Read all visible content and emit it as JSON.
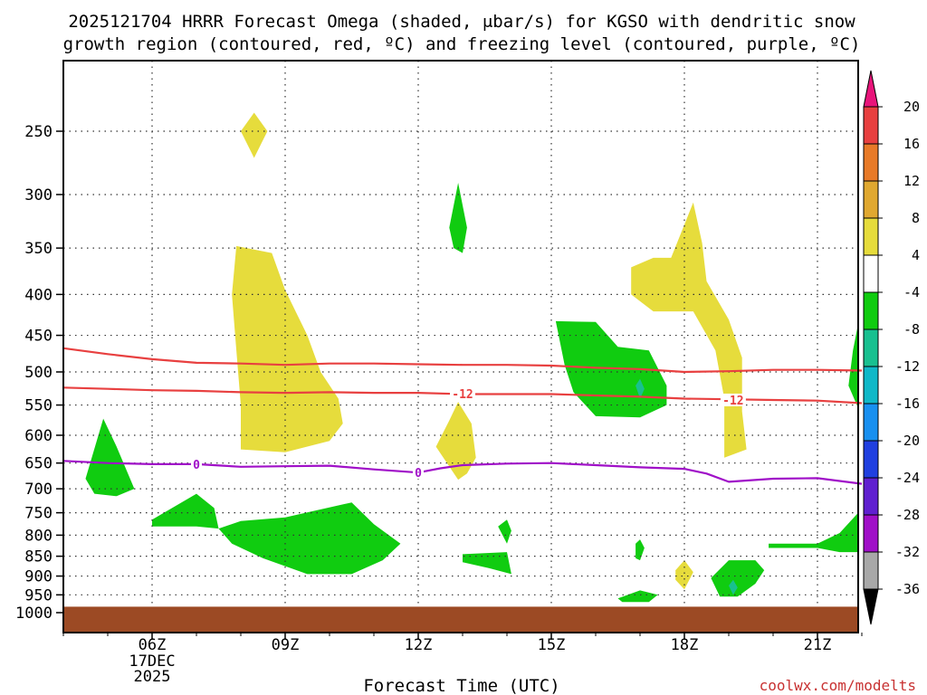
{
  "chart_data": {
    "type": "time-height",
    "title_lines": [
      "2025121704 HRRR Forecast Omega (shaded, μbar/s) for KGSO with dendritic snow",
      "growth region (contoured, red, ºC) and freezing level (contoured, purple, ºC)"
    ],
    "xlabel": "Forecast Time (UTC)",
    "credit": "coolwx.com/modelts",
    "x_ticks": [
      {
        "hour": 6,
        "label": "06Z",
        "sub": [
          "17DEC",
          "2025"
        ]
      },
      {
        "hour": 9,
        "label": "09Z",
        "sub": []
      },
      {
        "hour": 12,
        "label": "12Z",
        "sub": []
      },
      {
        "hour": 15,
        "label": "15Z",
        "sub": []
      },
      {
        "hour": 18,
        "label": "18Z",
        "sub": []
      },
      {
        "hour": 21,
        "label": "21Z",
        "sub": []
      }
    ],
    "x_range_hours": [
      4.0,
      22.0
    ],
    "y_ticks": [
      250,
      300,
      350,
      400,
      450,
      500,
      550,
      600,
      650,
      700,
      750,
      800,
      850,
      900,
      950,
      1000
    ],
    "y_range_hpa": [
      200,
      1020
    ],
    "ground_level_hpa": 983,
    "colorbar": {
      "labels": [
        "20",
        "16",
        "12",
        "8",
        "4",
        "-4",
        "-8",
        "-12",
        "-16",
        "-20",
        "-24",
        "-28",
        "-32",
        "-36"
      ],
      "colors": [
        "#e8147a",
        "#e84040",
        "#e87a28",
        "#e0a830",
        "#e6dc3c",
        "#ffffff",
        "#10cc10",
        "#18c090",
        "#10b8c8",
        "#1890f0",
        "#2040e0",
        "#6020d0",
        "#a010c8",
        "#a8a8a8",
        "#000000"
      ]
    },
    "omega_regions": [
      {
        "value_range": "4 to 8",
        "color": "#e6dc3c",
        "points": [
          [
            8.0,
            250
          ],
          [
            8.3,
            237
          ],
          [
            8.6,
            250
          ],
          [
            8.3,
            270
          ]
        ]
      },
      {
        "value_range": "4 to 8",
        "color": "#e6dc3c",
        "points": [
          [
            7.8,
            400
          ],
          [
            7.9,
            348
          ],
          [
            8.7,
            355
          ],
          [
            9.0,
            395
          ],
          [
            9.5,
            450
          ],
          [
            9.8,
            500
          ],
          [
            10.2,
            540
          ],
          [
            10.3,
            580
          ],
          [
            10.0,
            610
          ],
          [
            9.0,
            630
          ],
          [
            8.0,
            625
          ],
          [
            8.0,
            550
          ],
          [
            7.9,
            470
          ]
        ]
      },
      {
        "value_range": "-4 to -8",
        "color": "#10cc10",
        "points": [
          [
            12.7,
            330
          ],
          [
            12.9,
            290
          ],
          [
            13.1,
            330
          ],
          [
            13.0,
            355
          ],
          [
            12.8,
            350
          ]
        ]
      },
      {
        "value_range": "4 to 8",
        "color": "#e6dc3c",
        "points": [
          [
            17.7,
            360
          ],
          [
            18.2,
            307
          ],
          [
            18.4,
            345
          ],
          [
            18.5,
            385
          ],
          [
            19.0,
            430
          ],
          [
            19.3,
            480
          ],
          [
            19.3,
            560
          ],
          [
            19.4,
            625
          ],
          [
            18.9,
            640
          ],
          [
            18.9,
            540
          ],
          [
            18.7,
            470
          ],
          [
            18.2,
            420
          ],
          [
            17.8,
            420
          ],
          [
            17.3,
            420
          ],
          [
            16.8,
            400
          ],
          [
            16.8,
            370
          ],
          [
            17.3,
            360
          ]
        ]
      },
      {
        "value_range": "-4 to -8",
        "color": "#10cc10",
        "points": [
          [
            15.1,
            432
          ],
          [
            16.0,
            433
          ],
          [
            16.5,
            465
          ],
          [
            17.2,
            470
          ],
          [
            17.6,
            520
          ],
          [
            17.6,
            550
          ],
          [
            17.0,
            570
          ],
          [
            16.0,
            568
          ],
          [
            15.5,
            530
          ],
          [
            15.3,
            490
          ]
        ]
      },
      {
        "value_range": "-8 to -12",
        "color": "#18c090",
        "points": [
          [
            16.9,
            520
          ],
          [
            17.0,
            510
          ],
          [
            17.1,
            525
          ],
          [
            17.0,
            540
          ]
        ]
      },
      {
        "value_range": "-4 to -8",
        "color": "#10cc10",
        "points": [
          [
            22.0,
            435
          ],
          [
            22.0,
            555
          ],
          [
            21.7,
            520
          ],
          [
            21.8,
            470
          ]
        ]
      },
      {
        "value_range": "-4 to -8",
        "color": "#10cc10",
        "points": [
          [
            4.5,
            680
          ],
          [
            4.9,
            572
          ],
          [
            5.2,
            620
          ],
          [
            5.6,
            700
          ],
          [
            5.2,
            715
          ],
          [
            4.7,
            710
          ]
        ]
      },
      {
        "value_range": "4 to 8",
        "color": "#e6dc3c",
        "points": [
          [
            12.4,
            620
          ],
          [
            12.7,
            575
          ],
          [
            12.9,
            545
          ],
          [
            13.2,
            580
          ],
          [
            13.3,
            640
          ],
          [
            13.1,
            670
          ],
          [
            12.9,
            682
          ]
        ]
      },
      {
        "value_range": "-4 to -8",
        "color": "#10cc10",
        "points": [
          [
            6.0,
            765
          ],
          [
            7.0,
            710
          ],
          [
            7.4,
            740
          ],
          [
            7.5,
            785
          ],
          [
            7.0,
            780
          ],
          [
            6.0,
            780
          ]
        ]
      },
      {
        "value_range": "-4 to -8",
        "color": "#10cc10",
        "points": [
          [
            7.5,
            785
          ],
          [
            8.0,
            768
          ],
          [
            9.0,
            760
          ],
          [
            10.5,
            728
          ],
          [
            11.0,
            775
          ],
          [
            11.6,
            820
          ],
          [
            11.2,
            860
          ],
          [
            10.5,
            895
          ],
          [
            9.5,
            895
          ],
          [
            8.5,
            855
          ],
          [
            7.8,
            820
          ]
        ]
      },
      {
        "value_range": "-4 to -8",
        "color": "#10cc10",
        "points": [
          [
            13.8,
            780
          ],
          [
            14.0,
            765
          ],
          [
            14.1,
            790
          ],
          [
            14.0,
            820
          ]
        ]
      },
      {
        "value_range": "-4 to -8",
        "color": "#10cc10",
        "points": [
          [
            13.0,
            845
          ],
          [
            14.0,
            840
          ],
          [
            14.1,
            895
          ],
          [
            13.6,
            880
          ],
          [
            13.0,
            865
          ]
        ]
      },
      {
        "value_range": "-4 to -8",
        "color": "#10cc10",
        "points": [
          [
            16.9,
            820
          ],
          [
            17.0,
            810
          ],
          [
            17.1,
            830
          ],
          [
            17.0,
            860
          ],
          [
            16.9,
            855
          ]
        ]
      },
      {
        "value_range": "4 to 8",
        "color": "#e6dc3c",
        "points": [
          [
            17.8,
            885
          ],
          [
            18.0,
            860
          ],
          [
            18.2,
            890
          ],
          [
            18.0,
            935
          ],
          [
            17.8,
            910
          ]
        ]
      },
      {
        "value_range": "-4 to -8",
        "color": "#10cc10",
        "points": [
          [
            16.5,
            960
          ],
          [
            17.0,
            938
          ],
          [
            17.4,
            950
          ],
          [
            17.2,
            970
          ],
          [
            16.6,
            970
          ]
        ]
      },
      {
        "value_range": "-4 to -8",
        "color": "#10cc10",
        "points": [
          [
            18.6,
            905
          ],
          [
            19.0,
            860
          ],
          [
            19.6,
            860
          ],
          [
            19.8,
            885
          ],
          [
            19.6,
            920
          ],
          [
            19.2,
            955
          ],
          [
            18.8,
            955
          ]
        ]
      },
      {
        "value_range": "-8 to -12",
        "color": "#18c090",
        "points": [
          [
            19.0,
            925
          ],
          [
            19.1,
            910
          ],
          [
            19.2,
            930
          ],
          [
            19.1,
            950
          ]
        ]
      },
      {
        "value_range": "-4 to -8",
        "color": "#10cc10",
        "points": [
          [
            19.9,
            820
          ],
          [
            21.0,
            820
          ],
          [
            21.5,
            795
          ],
          [
            22.0,
            750
          ],
          [
            22.0,
            840
          ],
          [
            21.5,
            840
          ],
          [
            21.0,
            830
          ],
          [
            19.9,
            830
          ]
        ]
      }
    ],
    "dgz_contours": [
      {
        "value": -12,
        "color": "#e84040",
        "points": [
          [
            4.0,
            467
          ],
          [
            5.0,
            475
          ],
          [
            6.0,
            482
          ],
          [
            7.0,
            487
          ],
          [
            8.0,
            488
          ],
          [
            9.0,
            490
          ],
          [
            10.0,
            488
          ],
          [
            11.0,
            488
          ],
          [
            12.0,
            489
          ],
          [
            13.0,
            490
          ],
          [
            14.0,
            490
          ],
          [
            15.0,
            491
          ],
          [
            16.0,
            494
          ],
          [
            17.0,
            496
          ],
          [
            18.0,
            500
          ],
          [
            19.0,
            499
          ],
          [
            20.0,
            497
          ],
          [
            21.0,
            497
          ],
          [
            22.0,
            498
          ]
        ]
      },
      {
        "value": -12,
        "color": "#e84040",
        "points": [
          [
            4.0,
            523
          ],
          [
            5.0,
            525
          ],
          [
            6.0,
            527
          ],
          [
            7.0,
            528
          ],
          [
            8.0,
            530
          ],
          [
            9.0,
            531
          ],
          [
            10.0,
            530
          ],
          [
            11.0,
            531
          ],
          [
            12.0,
            531
          ],
          [
            13.0,
            533
          ],
          [
            14.0,
            533
          ],
          [
            15.0,
            533
          ],
          [
            16.0,
            535
          ],
          [
            17.0,
            537
          ],
          [
            18.0,
            540
          ],
          [
            19.0,
            541
          ],
          [
            20.0,
            542
          ],
          [
            21.0,
            543
          ],
          [
            22.0,
            547
          ]
        ]
      }
    ],
    "dgz_labels": [
      {
        "x": 13.0,
        "y": 532,
        "text": "-12"
      },
      {
        "x": 19.1,
        "y": 542,
        "text": "-12"
      }
    ],
    "freezing_contour": {
      "value": 0,
      "color": "#a010c8",
      "points": [
        [
          4.0,
          646
        ],
        [
          5.0,
          650
        ],
        [
          6.0,
          652
        ],
        [
          7.0,
          652
        ],
        [
          8.0,
          657
        ],
        [
          9.0,
          656
        ],
        [
          10.0,
          655
        ],
        [
          11.0,
          662
        ],
        [
          12.0,
          668
        ],
        [
          12.5,
          660
        ],
        [
          13.0,
          654
        ],
        [
          14.0,
          651
        ],
        [
          15.0,
          650
        ],
        [
          16.0,
          654
        ],
        [
          17.0,
          658
        ],
        [
          18.0,
          661
        ],
        [
          18.5,
          670
        ],
        [
          19.0,
          686
        ],
        [
          20.0,
          680
        ],
        [
          21.0,
          679
        ],
        [
          22.0,
          690
        ]
      ]
    },
    "freezing_labels": [
      {
        "x": 7.0,
        "y": 652,
        "text": "0"
      },
      {
        "x": 12.0,
        "y": 668,
        "text": "0"
      }
    ]
  }
}
